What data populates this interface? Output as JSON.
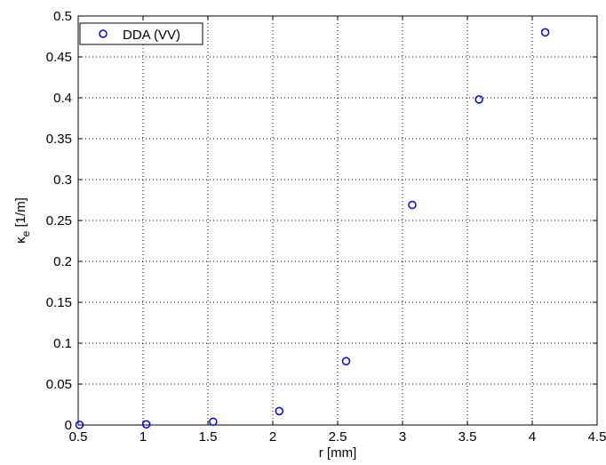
{
  "chart_data": {
    "type": "scatter",
    "title": "",
    "xlabel": "r [mm]",
    "ylabel": "κ",
    "ylabel_subscript": "e",
    "ylabel_unit": " [1/m]",
    "xlim": [
      0.5,
      4.5
    ],
    "ylim": [
      0,
      0.5
    ],
    "xticks": [
      "0.5",
      "1",
      "1.5",
      "2",
      "2.5",
      "3",
      "3.5",
      "4",
      "4.5"
    ],
    "yticks": [
      "0",
      "0.05",
      "0.1",
      "0.15",
      "0.2",
      "0.25",
      "0.3",
      "0.35",
      "0.4",
      "0.45",
      "0.5"
    ],
    "grid": true,
    "grid_style": "dotted",
    "legend_position": "top-left",
    "series": [
      {
        "name": "DDA (VV)",
        "marker": "circle",
        "color": "#0000ff",
        "x": [
          0.51,
          1.025,
          1.54,
          2.05,
          2.565,
          3.075,
          3.59,
          4.1
        ],
        "y": [
          0.0001,
          0.0008,
          0.004,
          0.017,
          0.078,
          0.269,
          0.398,
          0.48
        ]
      }
    ]
  }
}
